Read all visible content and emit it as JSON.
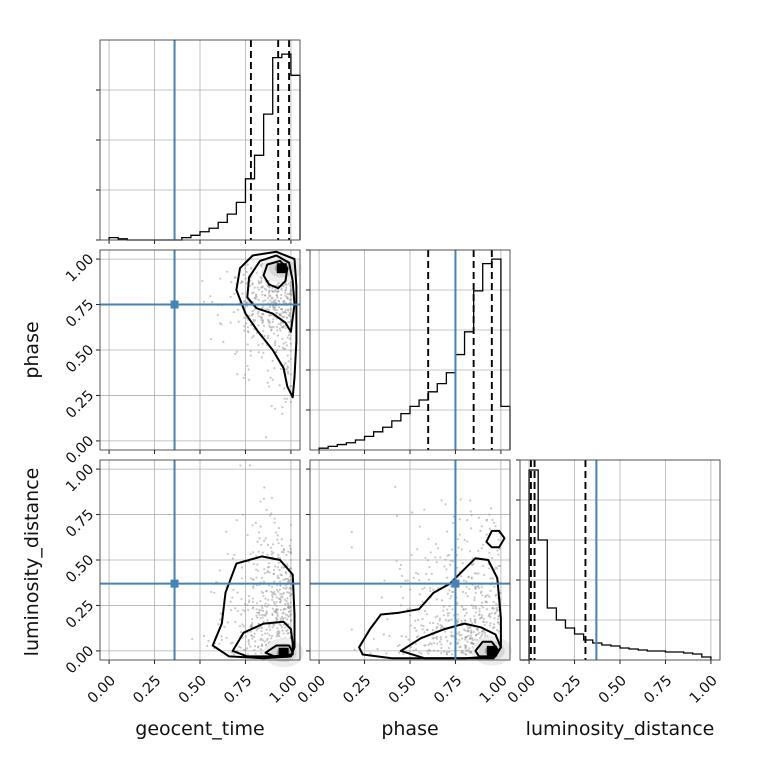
{
  "chart_data": {
    "type": "corner",
    "parameters": [
      "geocent_time",
      "phase",
      "luminosity_distance"
    ],
    "ticks": [
      0.0,
      0.25,
      0.5,
      0.75,
      1.0
    ],
    "tick_labels": [
      "0.00",
      "0.25",
      "0.50",
      "0.75",
      "1.00"
    ],
    "range": [
      -0.05,
      1.05
    ],
    "truths": [
      0.36,
      0.75,
      0.37
    ],
    "truth_color": "#4682b4",
    "quantiles": [
      [
        0.78,
        0.93,
        0.99
      ],
      [
        0.6,
        0.85,
        0.95
      ],
      [
        0.01,
        0.03,
        0.31
      ]
    ],
    "grid": true,
    "histograms": [
      {
        "parameter": "geocent_time",
        "bin_edges": [
          0.0,
          0.05,
          0.1,
          0.15,
          0.2,
          0.25,
          0.3,
          0.35,
          0.4,
          0.45,
          0.5,
          0.55,
          0.6,
          0.65,
          0.7,
          0.75,
          0.8,
          0.85,
          0.9,
          0.95,
          1.0,
          1.05
        ],
        "counts": [
          2,
          1,
          0,
          0,
          0,
          0,
          0,
          0,
          2,
          4,
          7,
          10,
          15,
          22,
          32,
          52,
          72,
          107,
          155,
          158,
          140
        ],
        "ylim": [
          0,
          170
        ]
      },
      {
        "parameter": "phase",
        "bin_edges": [
          0.0,
          0.05,
          0.1,
          0.15,
          0.2,
          0.25,
          0.3,
          0.35,
          0.4,
          0.45,
          0.5,
          0.55,
          0.6,
          0.65,
          0.7,
          0.75,
          0.8,
          0.85,
          0.9,
          0.95,
          1.0,
          1.05
        ],
        "counts": [
          2,
          4,
          6,
          8,
          11,
          15,
          20,
          25,
          32,
          40,
          48,
          55,
          64,
          73,
          85,
          105,
          130,
          175,
          205,
          210,
          48
        ],
        "ylim": [
          0,
          220
        ]
      },
      {
        "parameter": "luminosity_distance",
        "bin_edges": [
          -0.05,
          0.0,
          0.05,
          0.1,
          0.15,
          0.2,
          0.25,
          0.3,
          0.35,
          0.4,
          0.45,
          0.5,
          0.55,
          0.6,
          0.65,
          0.7,
          0.75,
          0.8,
          0.85,
          0.9,
          0.95,
          1.0
        ],
        "counts": [
          0,
          190,
          120,
          52,
          40,
          32,
          26,
          20,
          17,
          15,
          14,
          12,
          11,
          10,
          9,
          9,
          8,
          8,
          7,
          6,
          3
        ],
        "ylim": [
          0,
          200
        ]
      }
    ],
    "density_2d": [
      {
        "x": "geocent_time",
        "y": "phase",
        "contours": [
          [
            [
              0.97,
              0.88
            ],
            [
              0.93,
              0.84
            ],
            [
              0.88,
              0.86
            ],
            [
              0.85,
              0.91
            ],
            [
              0.87,
              0.97
            ],
            [
              0.94,
              0.99
            ],
            [
              0.98,
              0.95
            ]
          ],
          [
            [
              1.0,
              0.6
            ],
            [
              0.97,
              0.65
            ],
            [
              0.9,
              0.7
            ],
            [
              0.81,
              0.73
            ],
            [
              0.76,
              0.79
            ],
            [
              0.77,
              0.9
            ],
            [
              0.83,
              0.99
            ],
            [
              0.92,
              1.02
            ],
            [
              0.99,
              0.98
            ],
            [
              1.01,
              0.88
            ],
            [
              1.02,
              0.75
            ]
          ],
          [
            [
              1.01,
              0.24
            ],
            [
              0.98,
              0.3
            ],
            [
              0.96,
              0.4
            ],
            [
              0.9,
              0.5
            ],
            [
              0.82,
              0.6
            ],
            [
              0.75,
              0.7
            ],
            [
              0.7,
              0.83
            ],
            [
              0.72,
              0.95
            ],
            [
              0.79,
              1.02
            ],
            [
              0.92,
              1.04
            ],
            [
              1.02,
              1.0
            ],
            [
              1.03,
              0.85
            ],
            [
              1.03,
              0.55
            ],
            [
              1.02,
              0.35
            ]
          ]
        ],
        "peak": [
          0.95,
          0.95
        ]
      },
      {
        "x": "geocent_time",
        "y": "luminosity_distance",
        "contours": [
          [
            [
              0.86,
              -0.01
            ],
            [
              0.92,
              0.03
            ],
            [
              0.99,
              0.03
            ],
            [
              1.01,
              -0.01
            ],
            [
              0.99,
              -0.03
            ],
            [
              0.91,
              -0.03
            ]
          ],
          [
            [
              0.68,
              0.0
            ],
            [
              0.74,
              0.1
            ],
            [
              0.85,
              0.15
            ],
            [
              0.96,
              0.16
            ],
            [
              1.0,
              0.12
            ],
            [
              1.01,
              0.04
            ],
            [
              1.01,
              -0.02
            ],
            [
              0.9,
              -0.03
            ],
            [
              0.76,
              -0.03
            ]
          ],
          [
            [
              0.57,
              0.03
            ],
            [
              0.62,
              0.15
            ],
            [
              0.64,
              0.32
            ],
            [
              0.7,
              0.48
            ],
            [
              0.84,
              0.52
            ],
            [
              0.94,
              0.5
            ],
            [
              1.01,
              0.42
            ],
            [
              1.02,
              0.2
            ],
            [
              1.02,
              0.02
            ],
            [
              1.0,
              -0.03
            ],
            [
              0.85,
              -0.04
            ],
            [
              0.66,
              -0.03
            ]
          ]
        ],
        "peak": [
          0.96,
          -0.01
        ]
      },
      {
        "x": "phase",
        "y": "luminosity_distance",
        "contours": [
          [
            [
              0.86,
              0.0
            ],
            [
              0.9,
              0.05
            ],
            [
              0.95,
              0.05
            ],
            [
              0.98,
              0.01
            ],
            [
              0.95,
              -0.03
            ],
            [
              0.88,
              -0.03
            ]
          ],
          [
            [
              0.45,
              0.0
            ],
            [
              0.56,
              0.07
            ],
            [
              0.69,
              0.12
            ],
            [
              0.8,
              0.15
            ],
            [
              0.89,
              0.13
            ],
            [
              0.97,
              0.09
            ],
            [
              1.0,
              0.02
            ],
            [
              0.97,
              -0.03
            ],
            [
              0.8,
              -0.04
            ],
            [
              0.58,
              -0.04
            ]
          ],
          [
            [
              0.22,
              0.02
            ],
            [
              0.28,
              0.12
            ],
            [
              0.34,
              0.2
            ],
            [
              0.44,
              0.21
            ],
            [
              0.55,
              0.23
            ],
            [
              0.63,
              0.32
            ],
            [
              0.72,
              0.37
            ],
            [
              0.8,
              0.45
            ],
            [
              0.86,
              0.51
            ],
            [
              0.93,
              0.5
            ],
            [
              0.98,
              0.4
            ],
            [
              1.0,
              0.18
            ],
            [
              1.0,
              0.02
            ],
            [
              0.96,
              -0.04
            ],
            [
              0.7,
              -0.04
            ],
            [
              0.4,
              -0.04
            ],
            [
              0.24,
              -0.02
            ]
          ],
          [
            [
              0.92,
              0.6
            ],
            [
              0.95,
              0.66
            ],
            [
              0.99,
              0.66
            ],
            [
              1.02,
              0.62
            ],
            [
              0.99,
              0.57
            ],
            [
              0.95,
              0.57
            ]
          ]
        ],
        "peak": [
          0.95,
          0.0
        ]
      }
    ]
  }
}
